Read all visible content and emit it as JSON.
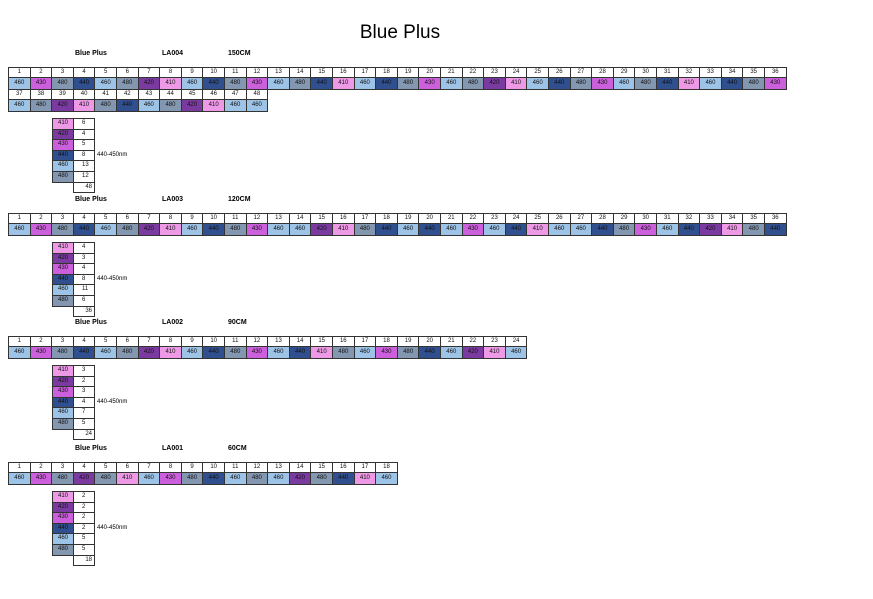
{
  "title": "Blue  Plus",
  "colors": {
    "410": "#ee99e6",
    "420": "#7a3aa0",
    "430": "#cc5fdc",
    "440": "#2f4f8f",
    "460": "#9dc3e6",
    "480": "#8497b0"
  },
  "sections": [
    {
      "brand": "Blue Plus",
      "code": "LA004",
      "length": "150CM",
      "rows": [
        {
          "numbers": [
            1,
            2,
            3,
            4,
            5,
            6,
            7,
            8,
            9,
            10,
            11,
            12,
            13,
            14,
            15,
            16,
            17,
            18,
            19,
            20,
            21,
            22,
            23,
            24,
            25,
            26,
            27,
            28,
            29,
            30,
            31,
            32,
            33,
            34,
            35,
            36
          ],
          "values": [
            460,
            430,
            480,
            440,
            460,
            480,
            420,
            410,
            460,
            440,
            480,
            430,
            460,
            480,
            440,
            410,
            460,
            440,
            480,
            430,
            460,
            480,
            420,
            410,
            460,
            440,
            480,
            430,
            460,
            480,
            440,
            410,
            460,
            440,
            480,
            430
          ]
        },
        {
          "numbers": [
            37,
            38,
            39,
            40,
            41,
            42,
            43,
            44,
            45,
            46,
            47,
            48
          ],
          "values": [
            460,
            480,
            420,
            410,
            480,
            440,
            460,
            480,
            420,
            410,
            460,
            460
          ]
        }
      ],
      "summary": [
        {
          "wavelength": 410,
          "count": 6
        },
        {
          "wavelength": 420,
          "count": 4
        },
        {
          "wavelength": 430,
          "count": 5
        },
        {
          "wavelength": 440,
          "count": 8
        },
        {
          "wavelength": 460,
          "count": 13
        },
        {
          "wavelength": 480,
          "count": 12
        }
      ],
      "note": "440-450nm",
      "total": 48
    },
    {
      "brand": "Blue Plus",
      "code": "LA003",
      "length": "120CM",
      "rows": [
        {
          "numbers": [
            1,
            2,
            3,
            4,
            5,
            6,
            7,
            8,
            9,
            10,
            11,
            12,
            13,
            14,
            15,
            16,
            17,
            18,
            19,
            20,
            21,
            22,
            23,
            24,
            25,
            26,
            27,
            28,
            29,
            30,
            31,
            32,
            33,
            34,
            35,
            36
          ],
          "values": [
            460,
            430,
            480,
            440,
            460,
            480,
            420,
            410,
            460,
            440,
            480,
            430,
            460,
            460,
            420,
            410,
            480,
            440,
            460,
            440,
            460,
            430,
            460,
            440,
            410,
            460,
            460,
            440,
            480,
            430,
            460,
            440,
            420,
            410,
            480,
            440
          ]
        }
      ],
      "summary": [
        {
          "wavelength": 410,
          "count": 4
        },
        {
          "wavelength": 420,
          "count": 3
        },
        {
          "wavelength": 430,
          "count": 4
        },
        {
          "wavelength": 440,
          "count": 8
        },
        {
          "wavelength": 460,
          "count": 11
        },
        {
          "wavelength": 480,
          "count": 6
        }
      ],
      "note": "440-450nm",
      "total": 36
    },
    {
      "brand": "Blue Plus",
      "code": "LA002",
      "length": "90CM",
      "rows": [
        {
          "numbers": [
            1,
            2,
            3,
            4,
            5,
            6,
            7,
            8,
            9,
            10,
            11,
            12,
            13,
            14,
            15,
            16,
            17,
            18,
            19,
            20,
            21,
            22,
            23,
            24
          ],
          "values": [
            460,
            430,
            480,
            440,
            460,
            480,
            420,
            410,
            460,
            440,
            480,
            430,
            460,
            440,
            410,
            480,
            460,
            430,
            480,
            440,
            460,
            420,
            410,
            460
          ]
        }
      ],
      "summary": [
        {
          "wavelength": 410,
          "count": 3
        },
        {
          "wavelength": 420,
          "count": 2
        },
        {
          "wavelength": 430,
          "count": 3
        },
        {
          "wavelength": 440,
          "count": 4
        },
        {
          "wavelength": 460,
          "count": 7
        },
        {
          "wavelength": 480,
          "count": 5
        }
      ],
      "note": "440-450nm",
      "total": 24
    },
    {
      "brand": "Blue Plus",
      "code": "LA001",
      "length": "60CM",
      "rows": [
        {
          "numbers": [
            1,
            2,
            3,
            4,
            5,
            6,
            7,
            8,
            9,
            10,
            11,
            12,
            13,
            14,
            15,
            16,
            17,
            18
          ],
          "values": [
            460,
            430,
            480,
            420,
            480,
            410,
            460,
            430,
            480,
            440,
            460,
            480,
            460,
            420,
            480,
            440,
            410,
            460
          ]
        }
      ],
      "summary": [
        {
          "wavelength": 410,
          "count": 2
        },
        {
          "wavelength": 420,
          "count": 2
        },
        {
          "wavelength": 430,
          "count": 2
        },
        {
          "wavelength": 440,
          "count": 2
        },
        {
          "wavelength": 460,
          "count": 5
        },
        {
          "wavelength": 480,
          "count": 5
        }
      ],
      "note": "440-450nm",
      "total": 18
    }
  ]
}
